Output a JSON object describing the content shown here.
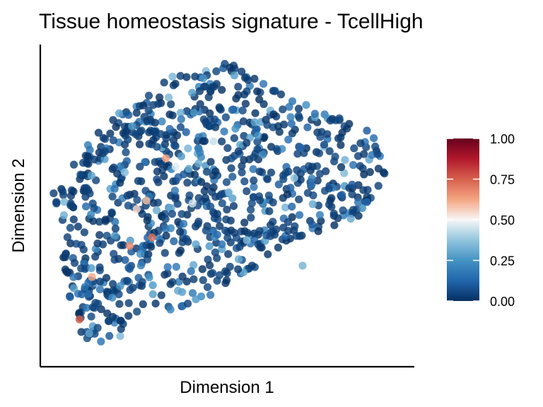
{
  "chart_data": {
    "type": "scatter",
    "title": "Tissue homeostasis signature - TcellHigh",
    "xlabel": "Dimension 1",
    "ylabel": "Dimension 2",
    "x_ticks_shown": false,
    "y_ticks_shown": false,
    "grid": false,
    "colorbar": {
      "position": "right",
      "range": [
        0,
        1
      ],
      "ticks": [
        "1.00",
        "0.75",
        "0.50",
        "0.25",
        "0.00"
      ],
      "colors": [
        "#053061",
        "#2166ac",
        "#4393c3",
        "#92c5de",
        "#f7f7f7",
        "#f4a582",
        "#d6604d",
        "#b2182b",
        "#67001f"
      ]
    },
    "highlighted_points": [
      {
        "x": 0.86,
        "y": 0.66,
        "value": 0.64
      },
      {
        "x": 0.72,
        "y": 0.51,
        "value": 0.58
      },
      {
        "x": 0.65,
        "y": 0.48,
        "value": 0.55
      },
      {
        "x": 0.76,
        "y": 0.38,
        "value": 0.72
      },
      {
        "x": 0.24,
        "y": 0.09,
        "value": 0.76
      },
      {
        "x": 0.6,
        "y": 0.35,
        "value": 0.68
      },
      {
        "x": 0.33,
        "y": 0.24,
        "value": 0.62
      },
      {
        "x": 0.93,
        "y": 0.63,
        "value": 0.47
      },
      {
        "x": 1.05,
        "y": 0.5,
        "value": 0.45
      },
      {
        "x": 1.2,
        "y": 0.72,
        "value": 0.44
      },
      {
        "x": 1.44,
        "y": 0.37,
        "value": 0.35
      },
      {
        "x": 1.78,
        "y": 0.59,
        "value": 0.38
      },
      {
        "x": 1.84,
        "y": 0.28,
        "value": 0.33
      },
      {
        "x": 0.31,
        "y": 0.04,
        "value": 0.3
      },
      {
        "x": 0.2,
        "y": 0.2,
        "value": 0.28
      },
      {
        "x": 1.52,
        "y": 0.74,
        "value": 0.25
      }
    ],
    "background_seed": 11,
    "background_count": 900
  }
}
